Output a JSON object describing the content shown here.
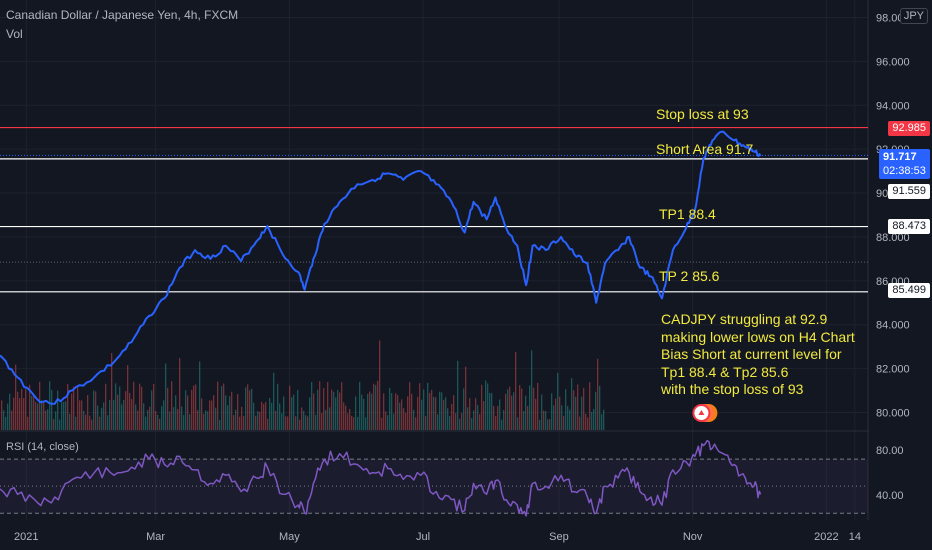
{
  "header": {
    "title": "Canadian Dollar / Japanese Yen, 4h, FXCM",
    "subtitle": "Vol"
  },
  "currency_badge": "JPY",
  "annotations": {
    "stop_loss": "Stop loss at 93",
    "short_area": "Short Area 91.7",
    "tp1": "TP1 88.4",
    "tp2": "TP 2 85.6",
    "comment": [
      "CADJPY struggling at 92.9",
      "making lower lows on H4 Chart",
      "Bias Short at current level for",
      "Tp1 88.4 & Tp2 85.6",
      "with the stop loss of 93"
    ]
  },
  "price_tags": {
    "stop": "92.985",
    "last": "91.717",
    "countdown": "02:38:53",
    "short": "91.559",
    "tp1": "88.473",
    "tp2": "85.499"
  },
  "rsi": {
    "label": "RSI (14, close)",
    "ticks": [
      "80.00",
      "40.00"
    ]
  },
  "colors": {
    "background": "#131722",
    "price_line": "#2962ff",
    "stop_line": "#f23645",
    "level_line": "#ffffff",
    "annotation_text": "#f2ea3e",
    "rsi_line": "#7e57c2",
    "volume_up": "#26a69a",
    "volume_down": "#ef5350"
  },
  "chart_data": [
    {
      "type": "line",
      "series_name": "CADJPY",
      "x_labels": [
        "2021",
        "Mar",
        "May",
        "Jul",
        "Sep",
        "Nov",
        "2022",
        "14"
      ],
      "y_ticks": [
        80,
        82,
        84,
        86,
        88,
        90,
        92,
        94,
        96,
        98
      ],
      "y_tick_labels": [
        "80.000",
        "82.000",
        "84.000",
        "86.000",
        "88.000",
        "90.000",
        "92.000",
        "94.000",
        "96.000",
        "98.000"
      ],
      "ylim": [
        79.2,
        98.8
      ],
      "date_range": [
        "2020-12-20",
        "2022-01-20"
      ],
      "points": [
        [
          "2020-12-20",
          82.6
        ],
        [
          "2020-12-28",
          81.6
        ],
        [
          "2021-01-06",
          80.6
        ],
        [
          "2021-01-14",
          80.4
        ],
        [
          "2021-01-22",
          81.0
        ],
        [
          "2021-02-01",
          81.6
        ],
        [
          "2021-02-10",
          82.3
        ],
        [
          "2021-02-18",
          83.2
        ],
        [
          "2021-02-26",
          84.4
        ],
        [
          "2021-03-05",
          85.2
        ],
        [
          "2021-03-12",
          86.6
        ],
        [
          "2021-03-19",
          87.4
        ],
        [
          "2021-03-26",
          87.0
        ],
        [
          "2021-04-02",
          87.6
        ],
        [
          "2021-04-09",
          86.9
        ],
        [
          "2021-04-16",
          87.8
        ],
        [
          "2021-04-21",
          88.5
        ],
        [
          "2021-04-28",
          87.2
        ],
        [
          "2021-05-05",
          86.4
        ],
        [
          "2021-05-08",
          85.6
        ],
        [
          "2021-05-12",
          87.0
        ],
        [
          "2021-05-17",
          88.6
        ],
        [
          "2021-05-24",
          89.6
        ],
        [
          "2021-06-01",
          90.4
        ],
        [
          "2021-06-08",
          90.6
        ],
        [
          "2021-06-15",
          90.9
        ],
        [
          "2021-06-22",
          90.6
        ],
        [
          "2021-06-30",
          91.0
        ],
        [
          "2021-07-07",
          90.4
        ],
        [
          "2021-07-14",
          89.6
        ],
        [
          "2021-07-20",
          88.2
        ],
        [
          "2021-07-24",
          89.6
        ],
        [
          "2021-07-30",
          88.8
        ],
        [
          "2021-08-03",
          89.8
        ],
        [
          "2021-08-08",
          88.4
        ],
        [
          "2021-08-13",
          87.6
        ],
        [
          "2021-08-17",
          85.8
        ],
        [
          "2021-08-20",
          87.6
        ],
        [
          "2021-08-26",
          87.4
        ],
        [
          "2021-09-02",
          88.0
        ],
        [
          "2021-09-08",
          87.2
        ],
        [
          "2021-09-14",
          86.8
        ],
        [
          "2021-09-18",
          85.0
        ],
        [
          "2021-09-22",
          86.8
        ],
        [
          "2021-09-28",
          87.4
        ],
        [
          "2021-10-03",
          88.0
        ],
        [
          "2021-10-08",
          86.6
        ],
        [
          "2021-10-13",
          86.2
        ],
        [
          "2021-10-18",
          85.2
        ],
        [
          "2021-10-23",
          87.4
        ],
        [
          "2021-10-29",
          88.4
        ],
        [
          "2021-11-02",
          89.2
        ],
        [
          "2021-11-06",
          91.6
        ],
        [
          "2021-11-10",
          92.4
        ],
        [
          "2021-11-15",
          92.8
        ],
        [
          "2021-11-20",
          92.4
        ],
        [
          "2021-11-25",
          92.1
        ],
        [
          "2021-11-29",
          91.9
        ],
        [
          "2021-12-02",
          91.7
        ]
      ]
    },
    {
      "type": "line",
      "series_name": "RSI (14, close)",
      "ylim": [
        25,
        90
      ],
      "bands": [
        70,
        30
      ],
      "midline": 50,
      "points": [
        [
          "2020-12-20",
          48
        ],
        [
          "2020-12-28",
          44
        ],
        [
          "2021-01-06",
          38
        ],
        [
          "2021-01-14",
          42
        ],
        [
          "2021-01-22",
          55
        ],
        [
          "2021-02-01",
          60
        ],
        [
          "2021-02-10",
          58
        ],
        [
          "2021-02-18",
          64
        ],
        [
          "2021-02-26",
          70
        ],
        [
          "2021-03-05",
          66
        ],
        [
          "2021-03-12",
          72
        ],
        [
          "2021-03-19",
          62
        ],
        [
          "2021-03-26",
          52
        ],
        [
          "2021-04-02",
          58
        ],
        [
          "2021-04-09",
          46
        ],
        [
          "2021-04-16",
          56
        ],
        [
          "2021-04-21",
          64
        ],
        [
          "2021-04-28",
          44
        ],
        [
          "2021-05-05",
          36
        ],
        [
          "2021-05-08",
          30
        ],
        [
          "2021-05-12",
          52
        ],
        [
          "2021-05-17",
          70
        ],
        [
          "2021-05-24",
          74
        ],
        [
          "2021-06-01",
          66
        ],
        [
          "2021-06-08",
          60
        ],
        [
          "2021-06-15",
          63
        ],
        [
          "2021-06-22",
          55
        ],
        [
          "2021-06-30",
          58
        ],
        [
          "2021-07-07",
          46
        ],
        [
          "2021-07-14",
          40
        ],
        [
          "2021-07-20",
          32
        ],
        [
          "2021-07-24",
          52
        ],
        [
          "2021-07-30",
          44
        ],
        [
          "2021-08-03",
          54
        ],
        [
          "2021-08-08",
          40
        ],
        [
          "2021-08-13",
          36
        ],
        [
          "2021-08-17",
          28
        ],
        [
          "2021-08-20",
          52
        ],
        [
          "2021-08-26",
          50
        ],
        [
          "2021-09-02",
          58
        ],
        [
          "2021-09-08",
          46
        ],
        [
          "2021-09-14",
          42
        ],
        [
          "2021-09-18",
          30
        ],
        [
          "2021-09-22",
          50
        ],
        [
          "2021-09-28",
          56
        ],
        [
          "2021-10-03",
          60
        ],
        [
          "2021-10-08",
          46
        ],
        [
          "2021-10-13",
          42
        ],
        [
          "2021-10-18",
          36
        ],
        [
          "2021-10-23",
          62
        ],
        [
          "2021-10-29",
          68
        ],
        [
          "2021-11-02",
          72
        ],
        [
          "2021-11-06",
          80
        ],
        [
          "2021-11-10",
          78
        ],
        [
          "2021-11-15",
          74
        ],
        [
          "2021-11-20",
          66
        ],
        [
          "2021-11-25",
          56
        ],
        [
          "2021-11-29",
          50
        ],
        [
          "2021-12-02",
          44
        ]
      ]
    }
  ]
}
